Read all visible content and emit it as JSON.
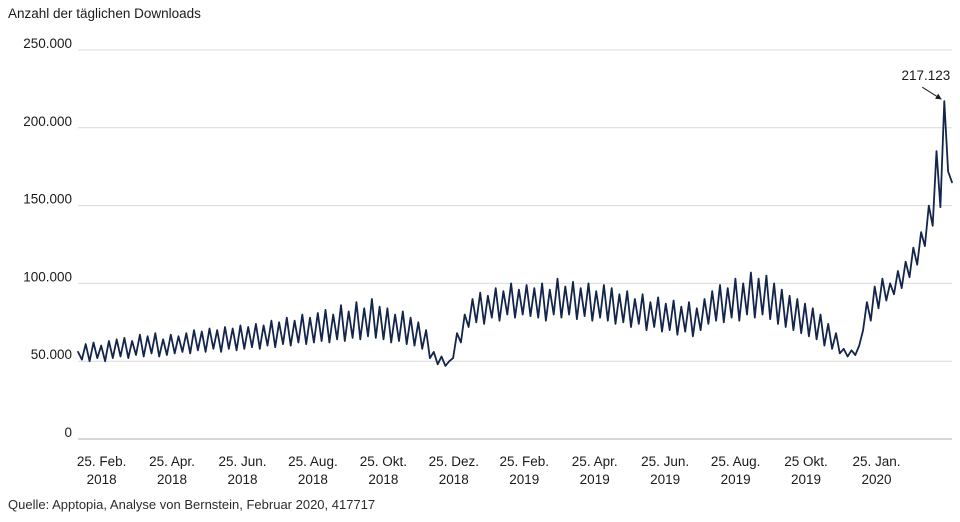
{
  "title": "Anzahl der täglichen Downloads",
  "source": "Quelle: Apptopia, Analyse von Bernstein, Februar 2020, 417717",
  "colors": {
    "line": "#14254c",
    "grid": "#d9d9d9",
    "zero_axis": "#b0b0b0",
    "text": "#1a1a1a"
  },
  "chart_data": {
    "type": "line",
    "title": "Anzahl der täglichen Downloads",
    "ylabel": "Anzahl der täglichen Downloads",
    "xlabel": "",
    "ylim": [
      0,
      250000
    ],
    "grid": "horizontal",
    "legend": "none",
    "series_name": "Tägliche Downloads",
    "annotation": {
      "label": "217.123",
      "value": 217123
    },
    "y_ticks": [
      {
        "label": "250.000",
        "value": 250000
      },
      {
        "label": "200.000",
        "value": 200000
      },
      {
        "label": "150.000",
        "value": 150000
      },
      {
        "label": "100.000",
        "value": 100000
      },
      {
        "label": "50.000",
        "value": 50000
      },
      {
        "label": "0",
        "value": 0
      }
    ],
    "x_ticks": [
      {
        "line1": "25. Feb.",
        "line2": "2018"
      },
      {
        "line1": "25. Apr.",
        "line2": "2018"
      },
      {
        "line1": "25. Jun.",
        "line2": "2018"
      },
      {
        "line1": "25. Aug.",
        "line2": "2018"
      },
      {
        "line1": "25. Okt.",
        "line2": "2018"
      },
      {
        "line1": "25. Dez.",
        "line2": "2018"
      },
      {
        "line1": "25. Feb.",
        "line2": "2019"
      },
      {
        "line1": "25. Apr.",
        "line2": "2019"
      },
      {
        "line1": "25. Jun.",
        "line2": "2019"
      },
      {
        "line1": "25. Aug.",
        "line2": "2019"
      },
      {
        "line1": "25 Okt.",
        "line2": "2019"
      },
      {
        "line1": "25. Jan.",
        "line2": "2020"
      }
    ],
    "values": [
      56000,
      51000,
      61000,
      50000,
      62000,
      52000,
      60000,
      50000,
      63000,
      52000,
      64000,
      53000,
      65000,
      52000,
      63000,
      54000,
      67000,
      53000,
      66000,
      55000,
      68000,
      53000,
      64000,
      54000,
      67000,
      55000,
      66000,
      56000,
      68000,
      55000,
      70000,
      57000,
      69000,
      56000,
      71000,
      58000,
      70000,
      56000,
      72000,
      58000,
      71000,
      57000,
      73000,
      58000,
      72000,
      59000,
      74000,
      58000,
      73000,
      60000,
      76000,
      59000,
      75000,
      61000,
      78000,
      60000,
      76000,
      62000,
      80000,
      61000,
      78000,
      62000,
      81000,
      63000,
      83000,
      62000,
      80000,
      64000,
      86000,
      63000,
      82000,
      65000,
      88000,
      64000,
      84000,
      66000,
      90000,
      65000,
      85000,
      64000,
      84000,
      62000,
      80000,
      63000,
      82000,
      61000,
      78000,
      60000,
      75000,
      58000,
      70000,
      52000,
      56000,
      48000,
      53000,
      47000,
      50000,
      52000,
      68000,
      62000,
      80000,
      72000,
      90000,
      75000,
      94000,
      74000,
      92000,
      78000,
      97000,
      76000,
      95000,
      80000,
      100000,
      78000,
      96000,
      80000,
      99000,
      79000,
      97000,
      78000,
      100000,
      76000,
      96000,
      80000,
      103000,
      78000,
      98000,
      80000,
      101000,
      77000,
      97000,
      79000,
      100000,
      76000,
      95000,
      78000,
      99000,
      76000,
      97000,
      74000,
      93000,
      75000,
      95000,
      72000,
      90000,
      74000,
      93000,
      70000,
      88000,
      72000,
      91000,
      69000,
      87000,
      70000,
      89000,
      67000,
      85000,
      69000,
      88000,
      66000,
      84000,
      70000,
      90000,
      74000,
      95000,
      76000,
      99000,
      75000,
      97000,
      78000,
      103000,
      76000,
      100000,
      80000,
      107000,
      78000,
      103000,
      80000,
      105000,
      77000,
      100000,
      74000,
      96000,
      72000,
      92000,
      70000,
      90000,
      68000,
      87000,
      66000,
      84000,
      64000,
      80000,
      60000,
      74000,
      58000,
      68000,
      55000,
      58000,
      53000,
      57000,
      54000,
      60000,
      70000,
      88000,
      76000,
      98000,
      84000,
      103000,
      89000,
      100000,
      93000,
      108000,
      97000,
      114000,
      104000,
      123000,
      112000,
      133000,
      124000,
      150000,
      137000,
      185000,
      149000,
      217123,
      172000,
      165000
    ]
  }
}
